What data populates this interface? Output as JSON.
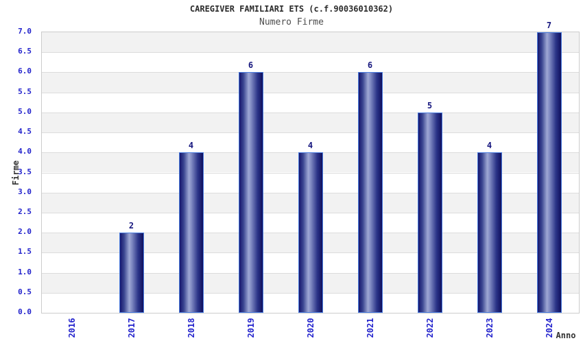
{
  "chart_data": {
    "type": "bar",
    "title": "CAREGIVER FAMILIARI ETS (c.f.90036010362)",
    "subtitle": "Numero Firme",
    "xlabel": "Anno",
    "ylabel": "Firme",
    "categories": [
      "2016",
      "2017",
      "2018",
      "2019",
      "2020",
      "2021",
      "2022",
      "2023",
      "2024"
    ],
    "values": [
      0,
      2,
      4,
      6,
      4,
      6,
      5,
      4,
      7
    ],
    "ylim": [
      0.0,
      7.0
    ],
    "ytick_step": 0.5,
    "ytick_labels": [
      "0.0",
      "0.5",
      "1.0",
      "1.5",
      "2.0",
      "2.5",
      "3.0",
      "3.5",
      "4.0",
      "4.5",
      "5.0",
      "5.5",
      "6.0",
      "6.5",
      "7.0"
    ],
    "legend": "none",
    "grid": "alternating horizontal bands with gridlines every 0.5",
    "colors": {
      "tick_label": "#2222cc",
      "bar_value_label": "#16167e",
      "title": "#2b2b2b",
      "subtitle": "#4d4d4d",
      "axis_label": "#333333",
      "band_gray": "#f2f2f2",
      "band_white": "#ffffff",
      "gridline": "#dcdcdc",
      "plot_border": "#cccccc",
      "bar_gradient": [
        "#16166e",
        "#3c4792",
        "#9fa8d5",
        "#7c86c0",
        "#2b3488",
        "#10105e"
      ],
      "bar_border": "#4a7de0"
    }
  }
}
